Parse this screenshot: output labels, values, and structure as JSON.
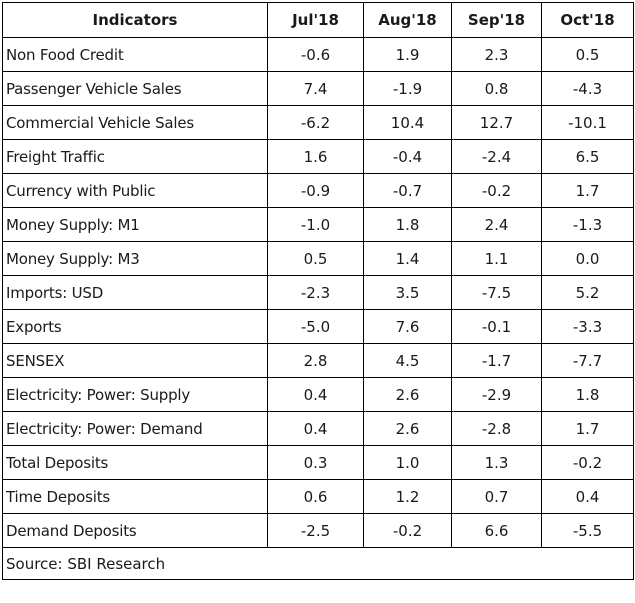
{
  "table": {
    "headers": [
      "Indicators",
      "Jul'18",
      "Aug'18",
      "Sep'18",
      "Oct'18"
    ],
    "rows": [
      {
        "indicator": "Non Food Credit",
        "values": [
          "-0.6",
          "1.9",
          "2.3",
          "0.5"
        ]
      },
      {
        "indicator": "Passenger Vehicle Sales",
        "values": [
          "7.4",
          "-1.9",
          "0.8",
          "-4.3"
        ]
      },
      {
        "indicator": "Commercial Vehicle Sales",
        "values": [
          "-6.2",
          "10.4",
          "12.7",
          "-10.1"
        ]
      },
      {
        "indicator": "Freight Traffic",
        "values": [
          "1.6",
          "-0.4",
          "-2.4",
          "6.5"
        ]
      },
      {
        "indicator": "Currency with Public",
        "values": [
          "-0.9",
          "-0.7",
          "-0.2",
          "1.7"
        ]
      },
      {
        "indicator": "Money Supply: M1",
        "values": [
          "-1.0",
          "1.8",
          "2.4",
          "-1.3"
        ]
      },
      {
        "indicator": "Money Supply: M3",
        "values": [
          "0.5",
          "1.4",
          "1.1",
          "0.0"
        ]
      },
      {
        "indicator": "Imports: USD",
        "values": [
          "-2.3",
          "3.5",
          "-7.5",
          "5.2"
        ]
      },
      {
        "indicator": "Exports",
        "values": [
          "-5.0",
          "7.6",
          "-0.1",
          "-3.3"
        ]
      },
      {
        "indicator": "SENSEX",
        "values": [
          "2.8",
          "4.5",
          "-1.7",
          "-7.7"
        ]
      },
      {
        "indicator": "Electricity: Power: Supply",
        "values": [
          "0.4",
          "2.6",
          "-2.9",
          "1.8"
        ]
      },
      {
        "indicator": "Electricity: Power: Demand",
        "values": [
          "0.4",
          "2.6",
          "-2.8",
          "1.7"
        ]
      },
      {
        "indicator": "Total Deposits",
        "values": [
          "0.3",
          "1.0",
          "1.3",
          "-0.2"
        ]
      },
      {
        "indicator": "Time Deposits",
        "values": [
          "0.6",
          "1.2",
          "0.7",
          "0.4"
        ]
      },
      {
        "indicator": "Demand Deposits",
        "values": [
          "-2.5",
          "-0.2",
          "6.6",
          "-5.5"
        ]
      }
    ],
    "source": "Source: SBI Research"
  }
}
